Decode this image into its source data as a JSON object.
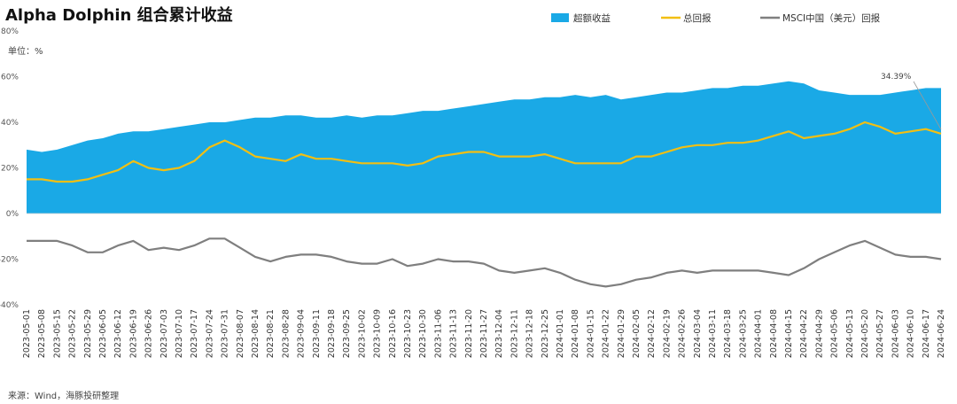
{
  "chart_data": {
    "type": "area",
    "title": "Alpha Dolphin 组合累计收益",
    "unit_label": "单位：%",
    "source": "来源：Wind，海豚投研整理",
    "ylim": [
      -40,
      80
    ],
    "yticks": [
      "80%",
      "60%",
      "40%",
      "20%",
      "0%",
      "-20%",
      "-40%"
    ],
    "ytick_values": [
      80,
      60,
      40,
      20,
      0,
      -20,
      -40
    ],
    "legend_position": "top-right",
    "annotation": "34.39%",
    "x": [
      "2023-05-01",
      "2023-05-08",
      "2023-05-15",
      "2023-05-22",
      "2023-05-29",
      "2023-06-05",
      "2023-06-12",
      "2023-06-19",
      "2023-06-26",
      "2023-07-03",
      "2023-07-10",
      "2023-07-17",
      "2023-07-24",
      "2023-07-31",
      "2023-08-07",
      "2023-08-14",
      "2023-08-21",
      "2023-08-28",
      "2023-09-04",
      "2023-09-11",
      "2023-09-18",
      "2023-09-25",
      "2023-10-02",
      "2023-10-09",
      "2023-10-16",
      "2023-10-23",
      "2023-10-30",
      "2023-11-06",
      "2023-11-13",
      "2023-11-20",
      "2023-11-27",
      "2023-12-04",
      "2023-12-11",
      "2023-12-18",
      "2023-12-25",
      "2024-01-01",
      "2024-01-08",
      "2024-01-15",
      "2024-01-22",
      "2024-01-29",
      "2024-02-05",
      "2024-02-12",
      "2024-02-19",
      "2024-02-26",
      "2024-03-04",
      "2024-03-11",
      "2024-03-18",
      "2024-03-25",
      "2024-04-01",
      "2024-04-08",
      "2024-04-15",
      "2024-04-22",
      "2024-04-29",
      "2024-05-06",
      "2024-05-13",
      "2024-05-20",
      "2024-05-27",
      "2024-06-03",
      "2024-06-10",
      "2024-06-17",
      "2024-06-24"
    ],
    "series": [
      {
        "name": "超额收益",
        "type": "area",
        "color": "#1aa9e6",
        "values": [
          28,
          27,
          28,
          30,
          32,
          33,
          35,
          36,
          36,
          37,
          38,
          39,
          40,
          40,
          41,
          42,
          42,
          43,
          43,
          42,
          42,
          43,
          42,
          43,
          43,
          44,
          45,
          45,
          46,
          47,
          48,
          49,
          50,
          50,
          51,
          51,
          52,
          51,
          52,
          50,
          51,
          52,
          53,
          53,
          54,
          55,
          55,
          56,
          56,
          57,
          58,
          57,
          54,
          53,
          52,
          52,
          52,
          53,
          54,
          55,
          55
        ]
      },
      {
        "name": "总回报",
        "type": "line",
        "color": "#f2bf13",
        "values": [
          15,
          15,
          14,
          14,
          15,
          17,
          19,
          23,
          20,
          19,
          20,
          23,
          29,
          32,
          29,
          25,
          24,
          23,
          26,
          24,
          24,
          23,
          22,
          22,
          22,
          21,
          22,
          25,
          26,
          27,
          27,
          25,
          25,
          25,
          26,
          24,
          22,
          22,
          22,
          22,
          25,
          25,
          27,
          29,
          30,
          30,
          31,
          31,
          32,
          34,
          36,
          33,
          34,
          35,
          37,
          40,
          38,
          35,
          36,
          37,
          35
        ]
      },
      {
        "name": "MSCI中国（美元）回报",
        "type": "line",
        "color": "#7f7f7f",
        "values": [
          -12,
          -12,
          -12,
          -14,
          -17,
          -17,
          -14,
          -12,
          -16,
          -15,
          -16,
          -14,
          -11,
          -11,
          -15,
          -19,
          -21,
          -19,
          -18,
          -18,
          -19,
          -21,
          -22,
          -22,
          -20,
          -23,
          -22,
          -20,
          -21,
          -21,
          -22,
          -25,
          -26,
          -25,
          -24,
          -26,
          -29,
          -31,
          -32,
          -31,
          -29,
          -28,
          -26,
          -25,
          -26,
          -25,
          -25,
          -25,
          -25,
          -26,
          -27,
          -24,
          -20,
          -17,
          -14,
          -12,
          -15,
          -18,
          -19,
          -19,
          -20
        ]
      }
    ]
  }
}
